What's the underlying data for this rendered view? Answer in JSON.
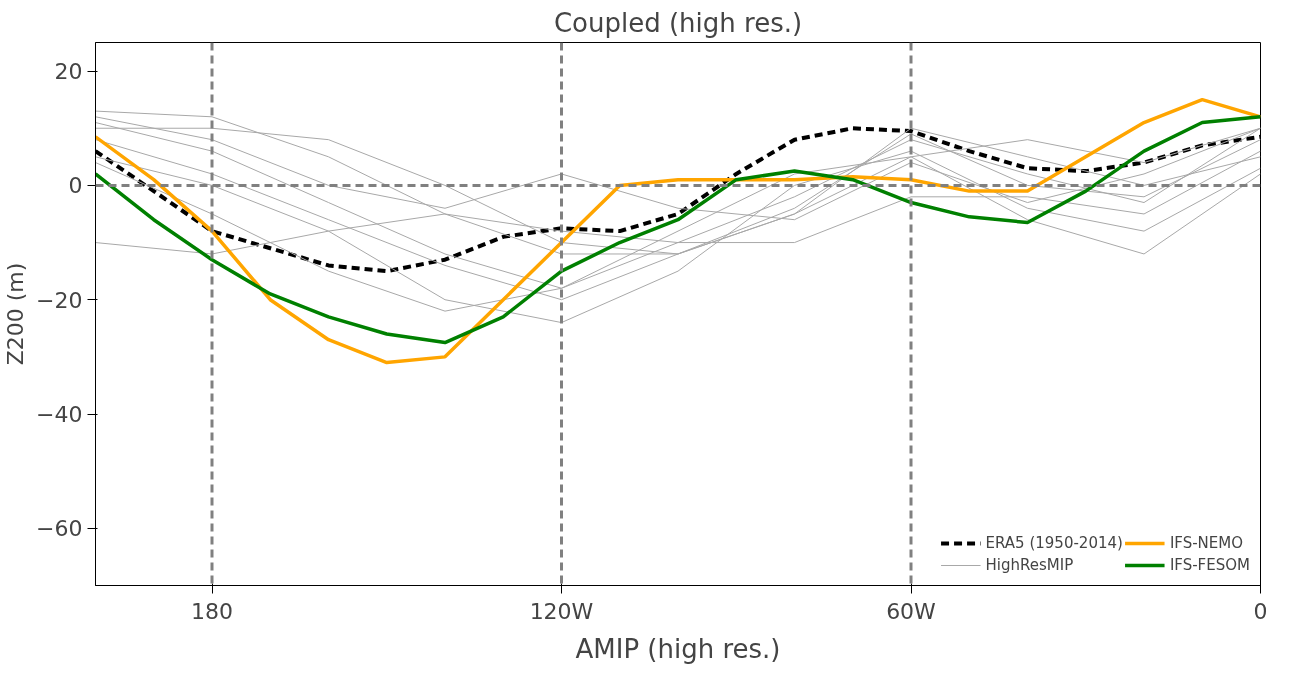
{
  "chart_data": {
    "type": "line",
    "title": "Coupled (high res.)",
    "ylabel": "Z200 (m)",
    "annotations": [
      "AMIP (high res.)"
    ],
    "x": [
      200,
      190,
      180,
      170,
      160,
      150,
      140,
      130,
      120,
      110,
      100,
      90,
      80,
      70,
      60,
      50,
      40,
      30,
      20,
      10,
      0
    ],
    "xlim": [
      200,
      0
    ],
    "ylim": [
      -70,
      25
    ],
    "xticks": [
      180,
      {
        "value": 120,
        "label": "120W"
      },
      {
        "value": 60,
        "label": "60W"
      },
      0
    ],
    "yticks": [
      {
        "value": -60,
        "label": "−60"
      },
      {
        "value": -40,
        "label": "−40"
      },
      {
        "value": -20,
        "label": "−20"
      },
      0,
      20
    ],
    "grid": false,
    "legend": "bottom right",
    "ref_lines": [
      {
        "axis": "x",
        "value": 180,
        "color": "#808080",
        "line_style": "dashed"
      },
      {
        "axis": "x",
        "value": 120,
        "color": "#808080",
        "line_style": "dashed"
      },
      {
        "axis": "x",
        "value": 60,
        "color": "#808080",
        "line_style": "dashed"
      },
      {
        "axis": "y",
        "value": 0,
        "color": "#808080",
        "line_style": "dashed"
      }
    ],
    "series": [
      {
        "name": "ERA5 (1950-2014)",
        "color": "#000000",
        "line_style": "dashed",
        "values": [
          6,
          -1,
          -8,
          -11,
          -14,
          -15,
          -13,
          -9,
          -7.5,
          -8,
          -5,
          2,
          8,
          10,
          9.5,
          6,
          3,
          2.5,
          4,
          7,
          8.5
        ]
      },
      {
        "name": "HighResMIP",
        "color": "#a8a8a8",
        "x": [
          200,
          180,
          160,
          140,
          120,
          100,
          80,
          60,
          40,
          20,
          0
        ],
        "values": [
          13,
          12,
          5,
          -5,
          -12,
          -12,
          -5,
          10,
          5,
          0,
          5
        ]
      },
      {
        "color": "#a8a8a8",
        "x": [
          200,
          180,
          160,
          140,
          120,
          100,
          80,
          60,
          40,
          20,
          0
        ],
        "values": [
          11,
          6,
          -3,
          -12,
          -18,
          -10,
          -2,
          8,
          2,
          -3,
          10
        ]
      },
      {
        "color": "#a8a8a8",
        "x": [
          200,
          180,
          160,
          140,
          120,
          100,
          80,
          60,
          40,
          20,
          0
        ],
        "values": [
          10,
          10,
          8,
          0,
          -10,
          -12,
          -5,
          5,
          8,
          4,
          10
        ]
      },
      {
        "color": "#a8a8a8",
        "x": [
          200,
          180,
          160,
          140,
          120,
          100,
          80,
          60,
          40,
          20,
          0
        ],
        "values": [
          5,
          0,
          -8,
          -20,
          -24,
          -15,
          0,
          6,
          -4,
          -8,
          3
        ]
      },
      {
        "color": "#a8a8a8",
        "x": [
          200,
          180,
          160,
          140,
          120,
          100,
          80,
          60,
          40,
          20,
          0
        ],
        "values": [
          -10,
          -12,
          -8,
          -5,
          -8,
          -10,
          -10,
          -2,
          -2,
          -5,
          6
        ]
      },
      {
        "color": "#a8a8a8",
        "x": [
          200,
          180,
          160,
          140,
          120,
          100,
          80,
          60,
          40,
          20,
          0
        ],
        "values": [
          4,
          -5,
          -15,
          -22,
          -18,
          -8,
          2,
          5,
          -6,
          -12,
          2
        ]
      },
      {
        "color": "#a8a8a8",
        "x": [
          200,
          180,
          160,
          140,
          120,
          100,
          80,
          60,
          40,
          20,
          0
        ],
        "values": [
          12,
          8,
          0,
          -4,
          2,
          -4,
          -6,
          4,
          -3,
          2,
          10
        ]
      },
      {
        "color": "#a8a8a8",
        "x": [
          200,
          180,
          160,
          140,
          120,
          100,
          80,
          60,
          40,
          20,
          0
        ],
        "values": [
          8,
          2,
          -6,
          -14,
          -20,
          -12,
          -4,
          9,
          0,
          -2,
          8
        ]
      },
      {
        "name": "IFS-NEMO",
        "color": "#ffa500",
        "values": [
          8.5,
          1,
          -8,
          -20,
          -27,
          -31,
          -30,
          -20,
          -10,
          0,
          1,
          1,
          1,
          1.5,
          1,
          -1,
          -1,
          5,
          11,
          15,
          12
        ]
      },
      {
        "name": "IFS-FESOM",
        "color": "#008000",
        "values": [
          2,
          -6,
          -13,
          -19,
          -23,
          -26,
          -27.5,
          -23,
          -15,
          -10,
          -6,
          1,
          2.5,
          1,
          -3,
          -5.5,
          -6.5,
          -1,
          6,
          11,
          12
        ]
      }
    ]
  }
}
